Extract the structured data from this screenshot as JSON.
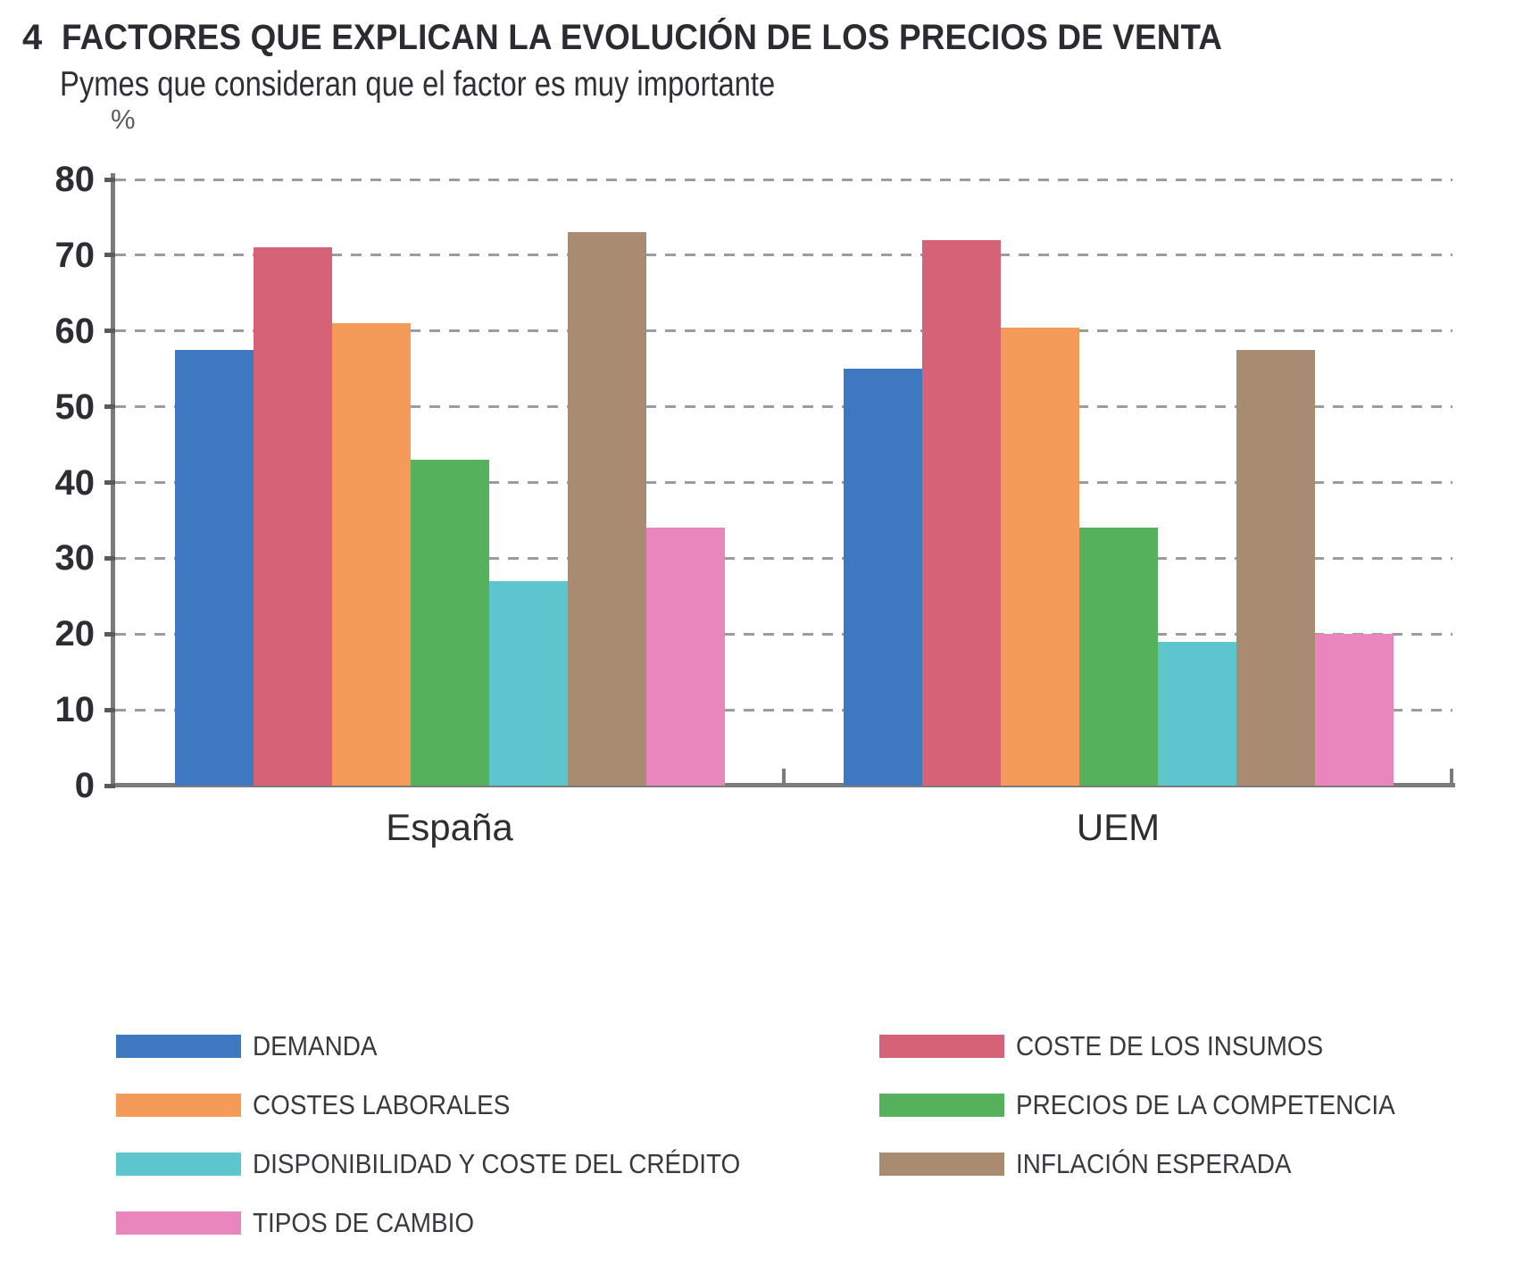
{
  "figure_number": "4",
  "chart_data": {
    "type": "bar",
    "title": "FACTORES QUE EXPLICAN LA EVOLUCIÓN DE LOS PRECIOS DE VENTA",
    "subtitle": "Pymes que consideran que el factor es muy importante",
    "ylabel": "%",
    "categories": [
      "España",
      "UEM"
    ],
    "series": [
      {
        "name": "DEMANDA",
        "color": "#3e78c1",
        "values": [
          57.5,
          55
        ]
      },
      {
        "name": "COSTE DE LOS INSUMOS",
        "color": "#d66277",
        "values": [
          71,
          72
        ]
      },
      {
        "name": "COSTES LABORALES",
        "color": "#f49b59",
        "values": [
          61,
          60.5
        ]
      },
      {
        "name": "PRECIOS DE LA COMPETENCIA",
        "color": "#55b15c",
        "values": [
          43,
          34
        ]
      },
      {
        "name": "DISPONIBILIDAD Y COSTE DEL CRÉDITO",
        "color": "#5cc5ce",
        "values": [
          27,
          19
        ]
      },
      {
        "name": "INFLACIÓN ESPERADA",
        "color": "#a88b71",
        "values": [
          73,
          57.5
        ]
      },
      {
        "name": "TIPOS DE CAMBIO",
        "color": "#e886bd",
        "values": [
          34,
          20
        ]
      }
    ],
    "ylim": [
      0,
      80
    ],
    "yticks": [
      0,
      10,
      20,
      30,
      40,
      50,
      60,
      70,
      80
    ],
    "grid": "horizontal-dashed",
    "legend_position": "bottom-two-columns",
    "legend_columns": [
      [
        0,
        2,
        4,
        6
      ],
      [
        1,
        3,
        5
      ]
    ]
  }
}
